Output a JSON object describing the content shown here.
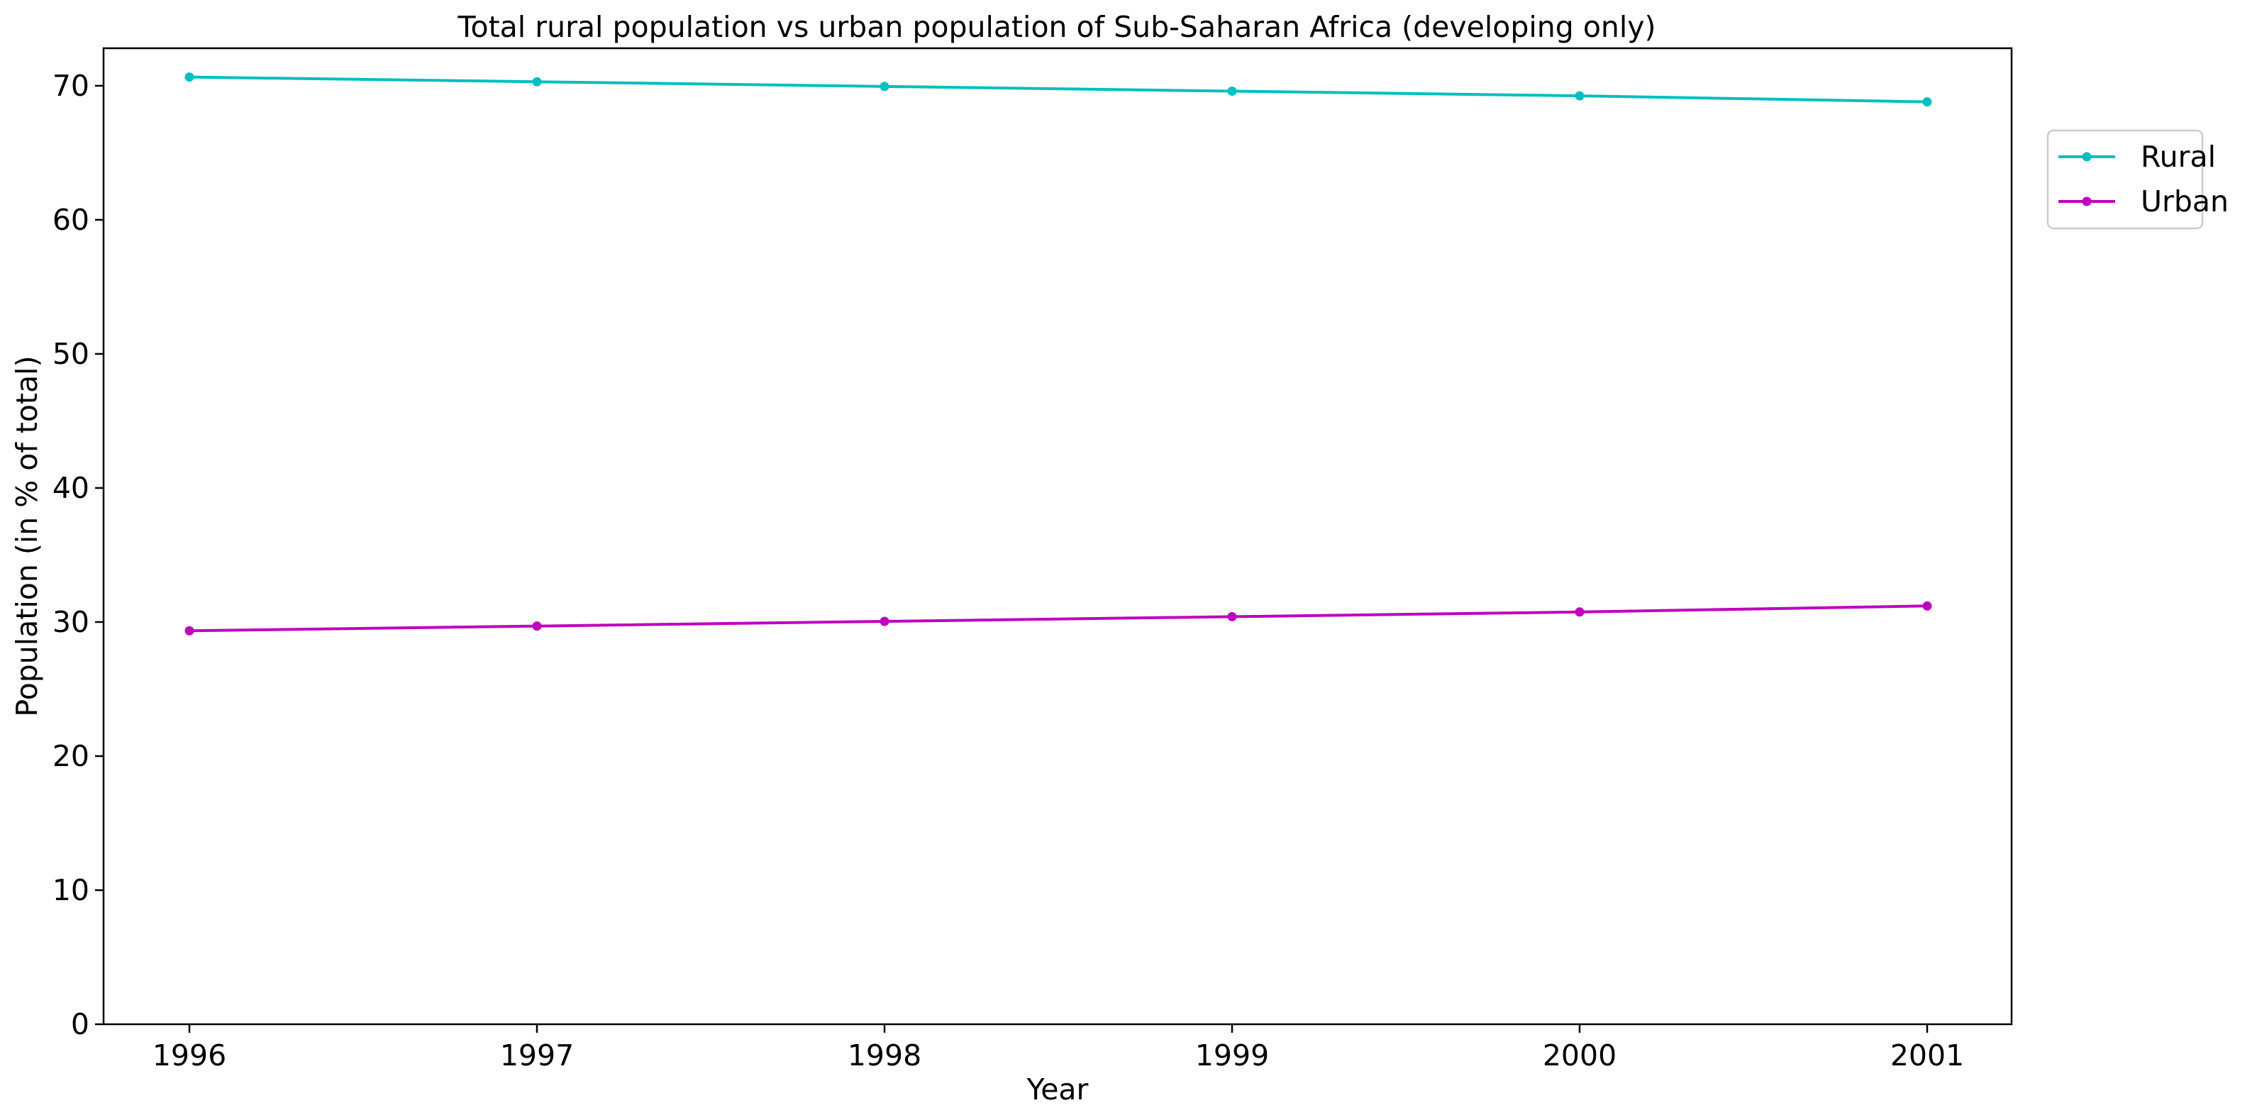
{
  "chart_data": {
    "type": "line",
    "title": "Total rural population vs urban population of Sub-Saharan Africa (developing only)",
    "xlabel": "Year",
    "ylabel": "Population (in % of total)",
    "x": [
      1996,
      1997,
      1998,
      1999,
      2000,
      2001
    ],
    "x_tick_labels": [
      "1996",
      "1997",
      "1998",
      "1999",
      "2000",
      "2001"
    ],
    "ylim": [
      0,
      72.8
    ],
    "y_ticks": [
      0,
      10,
      20,
      30,
      40,
      50,
      60,
      70
    ],
    "y_tick_labels": [
      "0",
      "10",
      "20",
      "30",
      "40",
      "50",
      "60",
      "70"
    ],
    "grid": false,
    "legend_position": "top-right, outside plot area",
    "series": [
      {
        "name": "Rural",
        "color": "#00bfbf",
        "marker": "circle",
        "values": [
          70.65,
          70.3,
          69.95,
          69.6,
          69.25,
          68.8
        ]
      },
      {
        "name": "Urban",
        "color": "#bf00bf",
        "marker": "circle",
        "values": [
          29.35,
          29.7,
          30.05,
          30.4,
          30.75,
          31.2
        ]
      }
    ]
  }
}
